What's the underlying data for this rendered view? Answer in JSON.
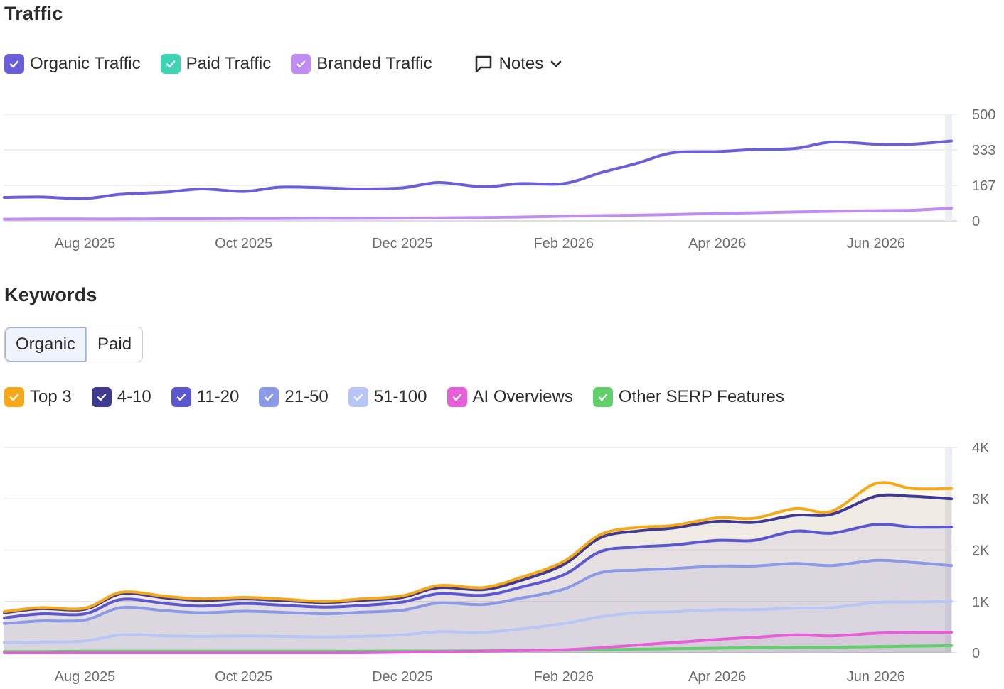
{
  "traffic": {
    "title": "Traffic",
    "legend": [
      {
        "label": "Organic Traffic",
        "color": "#6a5fd8",
        "icon": "checkbox-checked-icon"
      },
      {
        "label": "Paid Traffic",
        "color": "#3ed4b3",
        "icon": "checkbox-checked-icon"
      },
      {
        "label": "Branded Traffic",
        "color": "#c08cf2",
        "icon": "checkbox-checked-icon"
      }
    ],
    "notes": {
      "label": "Notes",
      "icon": "comment-icon",
      "dropdown_icon": "chevron-down-icon"
    }
  },
  "keywords": {
    "title": "Keywords",
    "tabs": [
      {
        "label": "Organic",
        "active": true
      },
      {
        "label": "Paid",
        "active": false
      }
    ],
    "legend": [
      {
        "label": "Top 3",
        "color": "#f5a91a"
      },
      {
        "label": "4-10",
        "color": "#3f3a8f"
      },
      {
        "label": "11-20",
        "color": "#5b58cf"
      },
      {
        "label": "21-50",
        "color": "#8b9ae6"
      },
      {
        "label": "51-100",
        "color": "#b7c6f7"
      },
      {
        "label": "AI Overviews",
        "color": "#e65fd8"
      },
      {
        "label": "Other SERP Features",
        "color": "#5fd06a"
      }
    ]
  },
  "chart_data": [
    {
      "type": "line",
      "name": "traffic-chart",
      "x_ticks": [
        "Aug 2025",
        "Oct 2025",
        "Dec 2025",
        "Feb 2026",
        "Apr 2026",
        "Jun 2026"
      ],
      "y_ticks": [
        "500",
        "333",
        "167",
        "0"
      ],
      "ylim": [
        0,
        500
      ],
      "grid": true,
      "x": [
        "2025-07-01",
        "2025-07-15",
        "2025-08-01",
        "2025-08-15",
        "2025-09-01",
        "2025-09-15",
        "2025-10-01",
        "2025-10-15",
        "2025-11-01",
        "2025-11-15",
        "2025-12-01",
        "2025-12-15",
        "2026-01-01",
        "2026-01-15",
        "2026-02-01",
        "2026-02-15",
        "2026-03-01",
        "2026-03-15",
        "2026-04-01",
        "2026-04-15",
        "2026-05-01",
        "2026-05-15",
        "2026-06-01",
        "2026-06-15",
        "2026-06-30"
      ],
      "series": [
        {
          "name": "Organic Traffic",
          "color": "#6a5fd8",
          "values": [
            110,
            112,
            105,
            125,
            135,
            150,
            138,
            158,
            155,
            150,
            155,
            180,
            160,
            175,
            175,
            225,
            270,
            320,
            325,
            335,
            340,
            370,
            360,
            360,
            375
          ]
        },
        {
          "name": "Branded Traffic",
          "color": "#c08cf2",
          "values": [
            8,
            9,
            9,
            9,
            10,
            10,
            11,
            11,
            12,
            12,
            13,
            14,
            16,
            18,
            22,
            25,
            27,
            30,
            35,
            38,
            42,
            45,
            48,
            50,
            60
          ]
        }
      ]
    },
    {
      "type": "area",
      "name": "keywords-chart",
      "x_ticks": [
        "Aug 2025",
        "Oct 2025",
        "Dec 2025",
        "Feb 2026",
        "Apr 2026",
        "Jun 2026"
      ],
      "y_ticks": [
        "4K",
        "3K",
        "2K",
        "1K",
        "0"
      ],
      "ylim": [
        0,
        4000
      ],
      "grid": true,
      "stacked_cumulative": true,
      "x": [
        "2025-07-01",
        "2025-07-15",
        "2025-08-01",
        "2025-08-15",
        "2025-09-01",
        "2025-09-15",
        "2025-10-01",
        "2025-10-15",
        "2025-11-01",
        "2025-11-15",
        "2025-12-01",
        "2025-12-15",
        "2026-01-01",
        "2026-01-15",
        "2026-02-01",
        "2026-02-15",
        "2026-03-01",
        "2026-03-15",
        "2026-04-01",
        "2026-04-15",
        "2026-05-01",
        "2026-05-15",
        "2026-06-01",
        "2026-06-15",
        "2026-06-30"
      ],
      "series": [
        {
          "name": "Top 3",
          "color": "#f5a91a",
          "values": [
            800,
            880,
            870,
            1180,
            1100,
            1050,
            1080,
            1050,
            1000,
            1050,
            1110,
            1310,
            1270,
            1460,
            1780,
            2300,
            2440,
            2480,
            2630,
            2620,
            2810,
            2760,
            3300,
            3200,
            3200
          ]
        },
        {
          "name": "4-10",
          "color": "#3f3a8f",
          "values": [
            780,
            860,
            850,
            1150,
            1070,
            1020,
            1050,
            1020,
            980,
            1020,
            1080,
            1270,
            1230,
            1400,
            1720,
            2240,
            2370,
            2430,
            2560,
            2540,
            2680,
            2700,
            3050,
            3050,
            3000
          ]
        },
        {
          "name": "11-20",
          "color": "#5b58cf",
          "values": [
            680,
            760,
            760,
            1040,
            960,
            910,
            960,
            930,
            890,
            920,
            990,
            1150,
            1120,
            1270,
            1520,
            1970,
            2060,
            2100,
            2190,
            2190,
            2370,
            2330,
            2500,
            2450,
            2450
          ]
        },
        {
          "name": "21-50",
          "color": "#8b9ae6",
          "values": [
            570,
            620,
            640,
            880,
            820,
            780,
            810,
            790,
            760,
            790,
            830,
            970,
            940,
            1060,
            1240,
            1560,
            1610,
            1640,
            1690,
            1690,
            1740,
            1700,
            1800,
            1760,
            1700
          ]
        },
        {
          "name": "51-100",
          "color": "#b7c6f7",
          "values": [
            200,
            210,
            230,
            350,
            330,
            320,
            330,
            320,
            310,
            320,
            350,
            410,
            400,
            460,
            570,
            700,
            780,
            800,
            840,
            840,
            870,
            880,
            980,
            990,
            1000
          ]
        },
        {
          "name": "AI Overviews",
          "color": "#e65fd8",
          "values": [
            0,
            0,
            0,
            0,
            0,
            0,
            0,
            0,
            0,
            0,
            10,
            20,
            30,
            45,
            60,
            100,
            150,
            200,
            260,
            300,
            350,
            330,
            380,
            400,
            400
          ]
        },
        {
          "name": "Other SERP Features",
          "color": "#5fd06a",
          "values": [
            25,
            25,
            30,
            30,
            30,
            30,
            30,
            30,
            30,
            30,
            35,
            35,
            40,
            45,
            50,
            60,
            70,
            80,
            90,
            100,
            110,
            110,
            120,
            130,
            140
          ]
        }
      ]
    }
  ]
}
